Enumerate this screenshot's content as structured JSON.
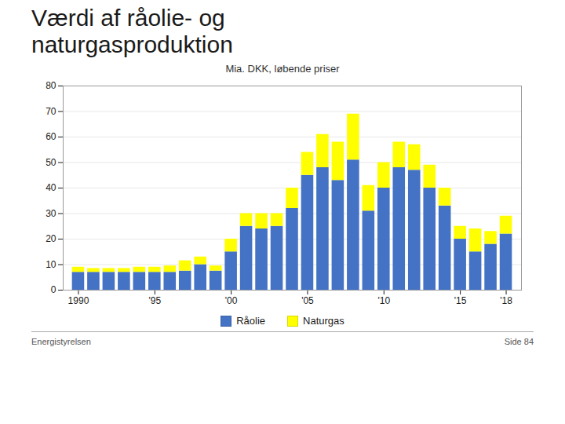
{
  "chart_data": {
    "type": "bar",
    "title": "Værdi af råolie- og\nnaturgasproduktion",
    "subtitle": "Mia. DKK, løbende priser",
    "x": [
      1990,
      1991,
      1992,
      1993,
      1994,
      1995,
      1996,
      1997,
      1998,
      1999,
      2000,
      2001,
      2002,
      2003,
      2004,
      2005,
      2006,
      2007,
      2008,
      2009,
      2010,
      2011,
      2012,
      2013,
      2014,
      2015,
      2016,
      2017,
      2018
    ],
    "series": [
      {
        "name": "Råolie",
        "color": "#4472C4",
        "values": [
          7,
          7,
          7,
          7,
          7,
          7,
          7,
          7.5,
          10,
          7.5,
          15,
          25,
          24,
          25,
          32,
          45,
          48,
          43,
          51,
          31,
          40,
          48,
          47,
          40,
          33,
          20,
          15,
          18,
          22
        ]
      },
      {
        "name": "Naturgas",
        "color": "#FFFF00",
        "values": [
          2,
          1.5,
          1.5,
          1.5,
          2,
          2,
          2.5,
          4,
          3,
          2,
          5,
          5,
          6,
          5,
          8,
          9,
          13,
          15,
          18,
          10,
          10,
          10,
          10,
          9,
          7,
          5,
          9,
          5,
          7
        ]
      }
    ],
    "stacked": true,
    "xlim": [
      1989,
      2019
    ],
    "xticks": [
      1990,
      {
        "value": 1995,
        "label": "'95"
      },
      {
        "value": 2000,
        "label": "'00"
      },
      {
        "value": 2005,
        "label": "'05"
      },
      {
        "value": 2010,
        "label": "'10"
      },
      {
        "value": 2015,
        "label": "'15"
      },
      {
        "value": 2018,
        "label": "'18"
      }
    ],
    "ylim": [
      0,
      80
    ],
    "yticks": [
      0,
      10,
      20,
      30,
      40,
      50,
      60,
      70,
      80
    ],
    "grid": true,
    "legend": "bottom",
    "annotations": [
      "Energistyrelsen",
      "Side 84"
    ]
  }
}
